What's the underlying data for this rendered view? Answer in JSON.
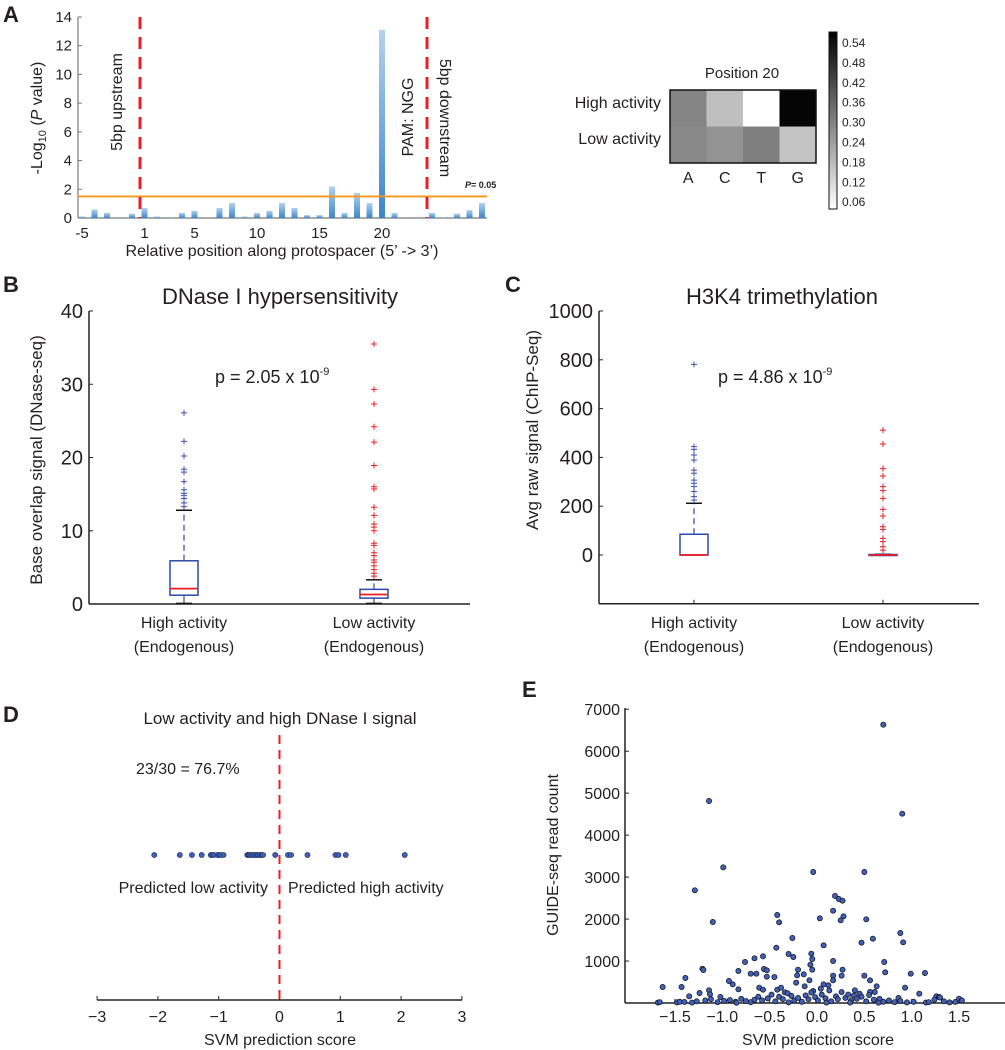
{
  "colors": {
    "bar_top": "#b3d1ef",
    "bar_bottom": "#3d86cb",
    "threshold": "#f7941d",
    "dash": "#ed1c24",
    "box": "#2e49a8",
    "median": "#ed1c24",
    "high_outlier": "#3b4fb5",
    "low_outlier": "#ed1c24",
    "point_fill": "#3f5fb8"
  },
  "chart_data": [
    {
      "panel": "A",
      "type": "bar",
      "ylabel_parts": [
        "-Log",
        "10",
        " (",
        "P",
        " value)"
      ],
      "xlabel": "Relative position along protospacer (5’ -> 3’)",
      "ylim": [
        0,
        14
      ],
      "yticks": [
        0,
        2,
        4,
        6,
        8,
        10,
        12,
        14
      ],
      "xticks": [
        -5,
        1,
        5,
        10,
        15,
        20
      ],
      "threshold": {
        "value": 1.5,
        "label_p": "P",
        "label_rest": "= 0.05"
      },
      "annotations": [
        "5bp upstream",
        "PAM: NGG",
        "5bp downstream"
      ],
      "bars": [
        {
          "pos": -5,
          "value": 0.1
        },
        {
          "pos": -4,
          "value": 0.6
        },
        {
          "pos": -3,
          "value": 0.35
        },
        {
          "pos": -2,
          "value": 0.05
        },
        {
          "pos": -1,
          "value": 0.3
        },
        {
          "pos": 1,
          "value": 0.7
        },
        {
          "pos": 2,
          "value": 0.1
        },
        {
          "pos": 3,
          "value": 0.05
        },
        {
          "pos": 4,
          "value": 0.35
        },
        {
          "pos": 5,
          "value": 0.5
        },
        {
          "pos": 6,
          "value": 0
        },
        {
          "pos": 7,
          "value": 0.7
        },
        {
          "pos": 8,
          "value": 1.05
        },
        {
          "pos": 9,
          "value": 0.1
        },
        {
          "pos": 10,
          "value": 0.35
        },
        {
          "pos": 11,
          "value": 0.5
        },
        {
          "pos": 12,
          "value": 1.05
        },
        {
          "pos": 13,
          "value": 0.7
        },
        {
          "pos": 14,
          "value": 0.2
        },
        {
          "pos": 15,
          "value": 0.2
        },
        {
          "pos": 16,
          "value": 2.2
        },
        {
          "pos": 17,
          "value": 0.35
        },
        {
          "pos": 18,
          "value": 1.75
        },
        {
          "pos": 19,
          "value": 1.05
        },
        {
          "pos": 20,
          "value": 13.1
        },
        {
          "pos": 21,
          "value": 0.35
        },
        {
          "pos": 22,
          "value": 0
        },
        {
          "pos": 23,
          "value": 0
        },
        {
          "pos": 24,
          "value": 0.35
        },
        {
          "pos": 25,
          "value": 0.05
        },
        {
          "pos": 26,
          "value": 0.3
        },
        {
          "pos": 27,
          "value": 0.55
        },
        {
          "pos": 28,
          "value": 1.05
        }
      ]
    },
    {
      "panel": "A-heatmap",
      "type": "heatmap",
      "title": "Position 20",
      "rows": [
        "High activity",
        "Low activity"
      ],
      "cols": [
        "A",
        "C",
        "T",
        "G"
      ],
      "values": [
        [
          0.3,
          0.18,
          0.05,
          0.56
        ],
        [
          0.29,
          0.27,
          0.31,
          0.17
        ]
      ],
      "colorbar_ticks": [
        "0.54",
        "0.48",
        "0.42",
        "0.36",
        "0.30",
        "0.24",
        "0.18",
        "0.12",
        "0.06"
      ],
      "crange": [
        0.05,
        0.57
      ]
    },
    {
      "panel": "B",
      "type": "box",
      "title": "DNase I hypersensitivity",
      "ylabel": "Base overlap signal (DNase-seq)",
      "ylim": [
        0,
        40
      ],
      "yticks": [
        0,
        10,
        20,
        30,
        40
      ],
      "pvalue": {
        "base": "p = 2.05 x 10",
        "exp": "-9"
      },
      "groups": [
        {
          "label": "High activity",
          "sub": "(Endogenous)",
          "q1": 1.2,
          "median": 2.1,
          "q3": 5.9,
          "whisker_low": 0.1,
          "whisker_high": 12.8,
          "outliers": [
            26.1,
            22.2,
            20.2,
            18.4,
            18.0,
            16.7,
            15.6,
            15.1,
            14.8,
            14.4,
            13.8,
            13.3
          ]
        },
        {
          "label": "Low activity",
          "sub": "(Endogenous)",
          "q1": 0.8,
          "median": 1.3,
          "q3": 2.0,
          "whisker_low": 0.1,
          "whisker_high": 3.3,
          "outliers": [
            35.5,
            29.3,
            27.3,
            24.2,
            22.1,
            18.9,
            16.0,
            15.7,
            13.2,
            12.1,
            10.9,
            10.5,
            10.0,
            8.3,
            8.0,
            7.0,
            6.6,
            6.0,
            5.7,
            5.2,
            4.7,
            4.2,
            3.8
          ]
        }
      ]
    },
    {
      "panel": "C",
      "type": "box",
      "title": "H3K4 trimethylation",
      "ylabel": "Avg raw signal (ChIP-Seq)",
      "ylim": [
        -200,
        1000
      ],
      "yticks": [
        0,
        200,
        400,
        600,
        800,
        1000
      ],
      "pvalue": {
        "base": "p = 4.86 x 10",
        "exp": "-9"
      },
      "groups": [
        {
          "label": "High activity",
          "sub": "(Endogenous)",
          "q1": 0,
          "median": 0,
          "q3": 85,
          "whisker_low": 0,
          "whisker_high": 212,
          "outliers": [
            781,
            444,
            433,
            410,
            389,
            348,
            335,
            307,
            294,
            280,
            260,
            239,
            225
          ]
        },
        {
          "label": "Low activity",
          "sub": "(Endogenous)",
          "q1": 0,
          "median": 0,
          "q3": 2,
          "whisker_low": 0,
          "whisker_high": 3,
          "outliers": [
            512,
            455,
            354,
            324,
            280,
            264,
            232,
            187,
            160,
            116,
            105,
            68,
            55,
            34,
            20
          ]
        }
      ]
    },
    {
      "panel": "D",
      "type": "scatter",
      "title": "Low activity and high DNase I signal",
      "annotation": "23/30 = 76.7%",
      "left_label": "Predicted low activity",
      "right_label": "Predicted high activity",
      "xlabel": "SVM prediction score",
      "xlim": [
        -3,
        3
      ],
      "xticks": [
        -3,
        -2,
        -1,
        0,
        1,
        2,
        3
      ],
      "threshold": 0,
      "x": [
        -2.06,
        -1.64,
        -1.44,
        -1.28,
        -1.13,
        -1.1,
        -1.08,
        -1.02,
        -0.99,
        -0.97,
        -0.92,
        -0.53,
        -0.51,
        -0.49,
        -0.46,
        -0.44,
        -0.4,
        -0.38,
        -0.35,
        -0.32,
        -0.29,
        -0.27,
        -0.07,
        0.14,
        0.19,
        0.46,
        0.92,
        0.97,
        1.09,
        2.06
      ]
    },
    {
      "panel": "E",
      "type": "scatter",
      "xlabel": "SVM prediction score",
      "ylabel": "GUIDE-seq read count",
      "xlim": [
        -2.0,
        2.2
      ],
      "ylim": [
        0,
        7000
      ],
      "xticks": [
        "−1.5",
        "−1.0",
        "−0.5",
        "0.0",
        "0.5",
        "1.0",
        "1.5"
      ],
      "xtick_values": [
        -1.5,
        -1.0,
        -0.5,
        0.0,
        0.5,
        1.0,
        1.5
      ],
      "yticks": [
        1000,
        2000,
        3000,
        4000,
        5000,
        6000,
        7000
      ],
      "points": [
        [
          0.7,
          6632
        ],
        [
          -1.14,
          4813
        ],
        [
          0.9,
          4511
        ],
        [
          -0.99,
          3233
        ],
        [
          -0.04,
          3121
        ],
        [
          0.5,
          3121
        ],
        [
          -1.29,
          2685
        ],
        [
          -1.1,
          1930
        ],
        [
          -0.42,
          2097
        ],
        [
          -0.4,
          1922
        ],
        [
          0.19,
          2550
        ],
        [
          0.23,
          2478
        ],
        [
          0.27,
          2438
        ],
        [
          0.17,
          2200
        ],
        [
          0.28,
          2065
        ],
        [
          0.25,
          1970
        ],
        [
          0.03,
          2017
        ],
        [
          0.52,
          1994
        ],
        [
          0.59,
          1533
        ],
        [
          0.47,
          1438
        ],
        [
          0.88,
          1668
        ],
        [
          0.91,
          1446
        ],
        [
          -0.26,
          1549
        ],
        [
          -0.43,
          1318
        ],
        [
          0.07,
          1374
        ],
        [
          -0.3,
          1168
        ],
        [
          -0.25,
          1096
        ],
        [
          -0.06,
          1175
        ],
        [
          -0.05,
          1048
        ],
        [
          -0.07,
          913
        ],
        [
          -0.05,
          794
        ],
        [
          0.17,
          1001
        ],
        [
          0.27,
          794
        ],
        [
          0.26,
          651
        ],
        [
          0.17,
          651
        ],
        [
          0.17,
          540
        ],
        [
          0.71,
          977
        ],
        [
          0.72,
          731
        ],
        [
          0.99,
          699
        ],
        [
          1.14,
          715
        ],
        [
          0.5,
          651
        ],
        [
          0.56,
          540
        ],
        [
          0.63,
          397
        ],
        [
          0.93,
          365
        ],
        [
          1.08,
          222
        ],
        [
          -0.57,
          1112
        ],
        [
          -0.66,
          1064
        ],
        [
          -0.76,
          977
        ],
        [
          -0.7,
          699
        ],
        [
          -0.64,
          699
        ],
        [
          -0.83,
          763
        ],
        [
          -0.56,
          810
        ],
        [
          -0.53,
          778
        ],
        [
          -0.53,
          627
        ],
        [
          -0.45,
          619
        ],
        [
          -0.2,
          794
        ],
        [
          -0.21,
          659
        ],
        [
          -0.14,
          683
        ],
        [
          -0.22,
          485
        ],
        [
          -0.13,
          397
        ],
        [
          -1.21,
          818
        ],
        [
          -1.2,
          786
        ],
        [
          -1.39,
          596
        ],
        [
          -0.93,
          524
        ],
        [
          -0.89,
          445
        ],
        [
          -0.83,
          326
        ],
        [
          -1.63,
          381
        ],
        [
          -1.43,
          381
        ],
        [
          -1.24,
          238
        ],
        [
          -1.14,
          302
        ],
        [
          -1.13,
          207
        ],
        [
          -1.35,
          159
        ],
        [
          -1.02,
          143
        ],
        [
          -0.61,
          365
        ],
        [
          -0.57,
          318
        ],
        [
          -0.42,
          318
        ],
        [
          -0.38,
          365
        ],
        [
          -0.34,
          254
        ],
        [
          -0.08,
          540
        ],
        [
          0.07,
          445
        ],
        [
          0.12,
          421
        ],
        [
          0.04,
          342
        ],
        [
          -0.04,
          286
        ],
        [
          0.4,
          302
        ],
        [
          0.45,
          222
        ],
        [
          0.56,
          262
        ],
        [
          0.61,
          262
        ],
        [
          0.86,
          119
        ],
        [
          1.26,
          159
        ],
        [
          1.29,
          143
        ],
        [
          1.5,
          103
        ],
        [
          -1.68,
          10
        ],
        [
          -1.66,
          20
        ],
        [
          -1.48,
          15
        ],
        [
          -1.45,
          30
        ],
        [
          -1.4,
          25
        ],
        [
          -1.32,
          10
        ],
        [
          -1.27,
          40
        ],
        [
          -1.18,
          60
        ],
        [
          -1.12,
          90
        ],
        [
          -1.05,
          20
        ],
        [
          -0.98,
          50
        ],
        [
          -0.92,
          70
        ],
        [
          -0.86,
          30
        ],
        [
          -0.8,
          100
        ],
        [
          -0.75,
          45
        ],
        [
          -0.7,
          20
        ],
        [
          -0.66,
          80
        ],
        [
          -0.62,
          150
        ],
        [
          -0.58,
          60
        ],
        [
          -0.52,
          110
        ],
        [
          -0.48,
          200
        ],
        [
          -0.44,
          40
        ],
        [
          -0.4,
          150
        ],
        [
          -0.36,
          90
        ],
        [
          -0.31,
          230
        ],
        [
          -0.27,
          170
        ],
        [
          -0.24,
          60
        ],
        [
          -0.2,
          120
        ],
        [
          -0.16,
          30
        ],
        [
          -0.12,
          180
        ],
        [
          -0.09,
          90
        ],
        [
          -0.06,
          250
        ],
        [
          -0.02,
          140
        ],
        [
          0.01,
          60
        ],
        [
          0.05,
          200
        ],
        [
          0.09,
          110
        ],
        [
          0.13,
          300
        ],
        [
          0.15,
          40
        ],
        [
          0.2,
          160
        ],
        [
          0.22,
          90
        ],
        [
          0.26,
          260
        ],
        [
          0.3,
          120
        ],
        [
          0.33,
          200
        ],
        [
          0.36,
          60
        ],
        [
          0.39,
          180
        ],
        [
          0.42,
          100
        ],
        [
          0.47,
          150
        ],
        [
          0.52,
          40
        ],
        [
          0.55,
          190
        ],
        [
          0.6,
          80
        ],
        [
          0.66,
          100
        ],
        [
          0.7,
          30
        ],
        [
          0.76,
          60
        ],
        [
          0.82,
          20
        ],
        [
          0.88,
          50
        ],
        [
          0.95,
          15
        ],
        [
          1.02,
          30
        ],
        [
          1.15,
          10
        ],
        [
          1.18,
          20
        ],
        [
          1.24,
          80
        ],
        [
          1.3,
          130
        ],
        [
          1.34,
          40
        ],
        [
          1.4,
          15
        ],
        [
          1.46,
          25
        ],
        [
          1.53,
          60
        ],
        [
          -0.3,
          15
        ],
        [
          0.1,
          10
        ],
        [
          0.35,
          10
        ],
        [
          -0.85,
          5
        ],
        [
          0.65,
          8
        ]
      ]
    }
  ],
  "panels": {
    "a": "A",
    "b": "B",
    "c": "C",
    "d": "D",
    "e": "E"
  }
}
